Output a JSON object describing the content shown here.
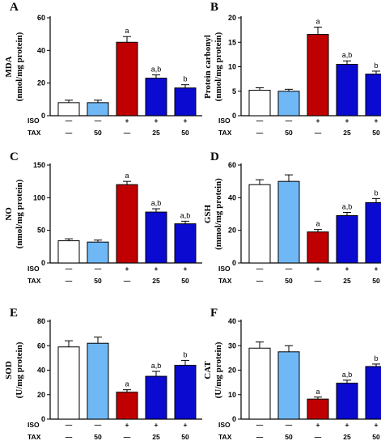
{
  "colors": {
    "control": "#ffffff",
    "tax_only": "#70b8f5",
    "iso": "#c00000",
    "iso_tax": "#0a0ad0",
    "axis": "#000000"
  },
  "group_rows": [
    {
      "label": "ISO",
      "cells": [
        "—",
        "—",
        "+",
        "+",
        "+"
      ]
    },
    {
      "label": "TAX",
      "cells": [
        "—",
        "50",
        "—",
        "25",
        "50"
      ]
    }
  ],
  "chart_data": [
    {
      "type": "bar",
      "panel": "A",
      "ylabel_lines": [
        "MDA",
        "(nmol/mg protein)"
      ],
      "ylim": [
        0,
        60
      ],
      "yticks": [
        0,
        20,
        40,
        60
      ],
      "values": [
        8,
        8,
        45,
        23,
        17
      ],
      "errors": [
        1.5,
        1.5,
        3.5,
        2,
        2
      ],
      "annotations": [
        "",
        "",
        "a",
        "a,b",
        "b"
      ]
    },
    {
      "type": "bar",
      "panel": "B",
      "ylabel_lines": [
        "Protein carbonyl",
        "(nmol/mg protein)"
      ],
      "ylim": [
        0,
        20
      ],
      "yticks": [
        0,
        5,
        10,
        15,
        20
      ],
      "values": [
        5.2,
        5,
        16.6,
        10.5,
        8.5
      ],
      "errors": [
        0.5,
        0.4,
        1.5,
        0.7,
        0.6
      ],
      "annotations": [
        "",
        "",
        "a",
        "a,b",
        "b"
      ]
    },
    {
      "type": "bar",
      "panel": "C",
      "ylabel_lines": [
        "NO",
        "(nmol/mg protein)"
      ],
      "ylim": [
        0,
        150
      ],
      "yticks": [
        0,
        50,
        100,
        150
      ],
      "values": [
        34,
        32,
        120,
        78,
        60
      ],
      "errors": [
        3,
        3,
        5,
        5,
        4
      ],
      "annotations": [
        "",
        "",
        "a",
        "a,b",
        "a,b"
      ]
    },
    {
      "type": "bar",
      "panel": "D",
      "ylabel_lines": [
        "GSH",
        "(mmol/mg protein)"
      ],
      "ylim": [
        0,
        60
      ],
      "yticks": [
        0,
        20,
        40,
        60
      ],
      "values": [
        48,
        50,
        19,
        29,
        37
      ],
      "errors": [
        3,
        4,
        1.5,
        2,
        2.5
      ],
      "annotations": [
        "",
        "",
        "a",
        "a,b",
        "b"
      ]
    },
    {
      "type": "bar",
      "panel": "E",
      "ylabel_lines": [
        "SOD",
        "(U/mg protein)"
      ],
      "ylim": [
        0,
        80
      ],
      "yticks": [
        0,
        20,
        40,
        60,
        80
      ],
      "values": [
        59,
        62,
        22,
        35,
        44
      ],
      "errors": [
        5,
        5,
        2,
        4,
        4
      ],
      "annotations": [
        "",
        "",
        "a",
        "a,b",
        "b"
      ]
    },
    {
      "type": "bar",
      "panel": "F",
      "ylabel_lines": [
        "CAT",
        "(U/mg protein)"
      ],
      "ylim": [
        0,
        40
      ],
      "yticks": [
        0,
        10,
        20,
        30,
        40
      ],
      "values": [
        29,
        27.5,
        8.2,
        14.7,
        21.5
      ],
      "errors": [
        2.5,
        2.5,
        0.8,
        1.2,
        1
      ],
      "annotations": [
        "",
        "",
        "a",
        "a,b",
        "b"
      ]
    }
  ]
}
